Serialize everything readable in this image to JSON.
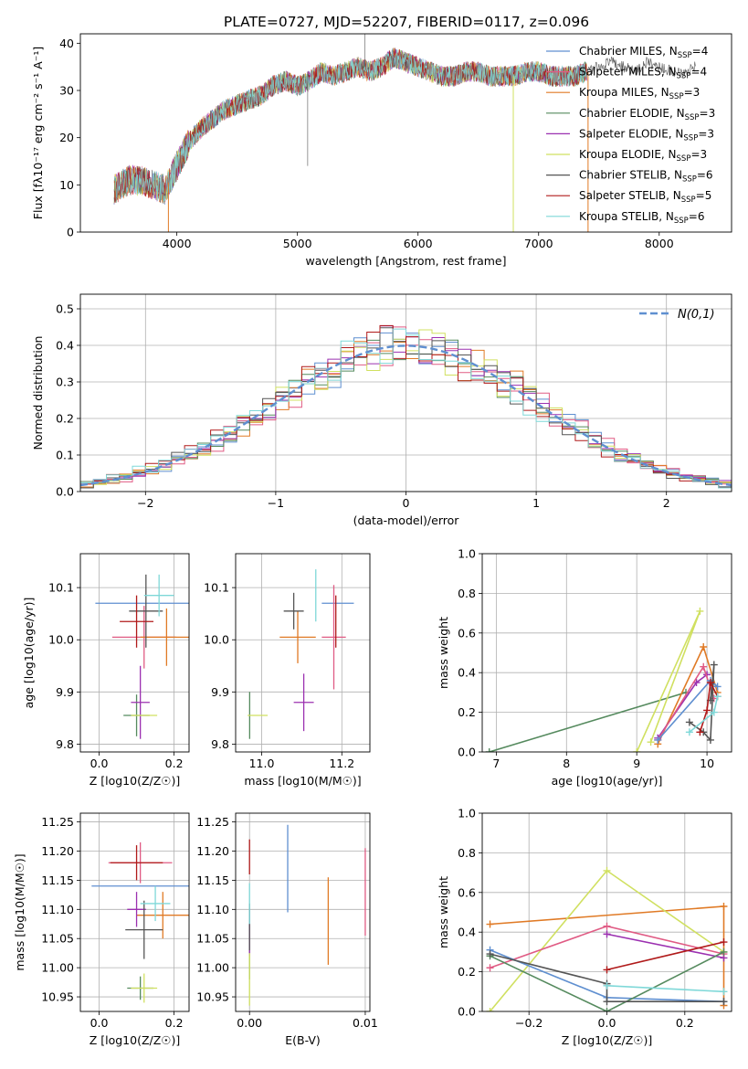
{
  "title": "PLATE=0727, MJD=52207, FIBERID=0117, z=0.096",
  "legend_spectra": [
    {
      "label": "Chabrier MILES, N",
      "sub": "SSP",
      "tail": "=4",
      "color": "#5f8fd0"
    },
    {
      "label": "Salpeter MILES, N",
      "sub": "SSP",
      "tail": "=4",
      "color": "#e05b84"
    },
    {
      "label": "Kroupa MILES, N",
      "sub": "SSP",
      "tail": "=3",
      "color": "#e07a25"
    },
    {
      "label": "Chabrier ELODIE, N",
      "sub": "SSP",
      "tail": "=3",
      "color": "#558a5e"
    },
    {
      "label": "Salpeter ELODIE, N",
      "sub": "SSP",
      "tail": "=3",
      "color": "#9b30b0"
    },
    {
      "label": "Kroupa ELODIE, N",
      "sub": "SSP",
      "tail": "=3",
      "color": "#d0e060"
    },
    {
      "label": "Chabrier STELIB, N",
      "sub": "SSP",
      "tail": "=6",
      "color": "#555555"
    },
    {
      "label": "Salpeter STELIB, N",
      "sub": "SSP",
      "tail": "=5",
      "color": "#b01a1a"
    },
    {
      "label": "Kroupa STELIB, N",
      "sub": "SSP",
      "tail": "=6",
      "color": "#7fd8d8"
    }
  ],
  "chart_data": [
    {
      "type": "line",
      "id": "spectrum",
      "title": "PLATE=0727, MJD=52207, FIBERID=0117, z=0.096",
      "xlabel": "wavelength [Angstrom, rest frame]",
      "ylabel": "Flux [fλ10⁻¹⁷ erg cm⁻² s⁻¹ A⁻¹]",
      "xlim": [
        3200,
        8600
      ],
      "ylim": [
        0,
        42
      ],
      "xticks": [
        4000,
        5000,
        6000,
        7000,
        8000
      ],
      "yticks": [
        0,
        10,
        20,
        30,
        40
      ],
      "grid": false,
      "legend": "right",
      "continuum_x": [
        3480,
        3600,
        3700,
        3800,
        3900,
        4000,
        4100,
        4200,
        4300,
        4400,
        4500,
        4600,
        4700,
        4800,
        4900,
        5000,
        5100,
        5200,
        5300,
        5400,
        5500,
        5600,
        5700,
        5800,
        5900,
        6000,
        6100,
        6200,
        6300,
        6400,
        6500,
        6600,
        6700,
        6800,
        6900,
        7000,
        7100,
        7200,
        7300,
        7400
      ],
      "continuum_y": [
        9,
        11,
        11,
        10,
        9,
        14,
        19,
        22,
        24,
        26,
        27,
        28,
        29,
        31,
        32,
        31,
        32,
        34,
        33,
        34,
        35,
        34,
        35,
        37,
        36,
        35,
        34,
        33,
        33,
        34,
        34,
        33,
        33,
        33,
        34,
        34,
        33,
        33,
        33,
        34
      ],
      "chabrier_stelib_tail_x": [
        7400,
        7600,
        7800,
        7900,
        8000,
        8100,
        8200,
        8300
      ],
      "chabrier_stelib_tail_y": [
        34,
        36,
        34,
        36,
        35,
        34,
        34,
        35
      ],
      "drops": [
        {
          "x": 3930,
          "color": "#e07a25"
        },
        {
          "x": 6790,
          "color": "#d0e060"
        },
        {
          "x": 7410,
          "color": "#e07a25"
        }
      ]
    },
    {
      "type": "line",
      "id": "residuals",
      "xlabel": "(data-model)/error",
      "ylabel": "Normed distribution",
      "xlim": [
        -2.5,
        2.5
      ],
      "ylim": [
        0,
        0.54
      ],
      "xticks": [
        -2,
        -1,
        0,
        1,
        2
      ],
      "yticks": [
        0.0,
        0.1,
        0.2,
        0.3,
        0.4,
        0.5
      ],
      "grid": true,
      "legend": "top-right",
      "legend_label": "N(0,1)",
      "normal_color": "#5f8fd0"
    },
    {
      "type": "scatter",
      "id": "age-vs-z",
      "xlabel": "Z [log10(Z/Z☉)]",
      "ylabel": "age [log10(age/yr)]",
      "xlim": [
        -0.05,
        0.24
      ],
      "ylim": [
        9.785,
        10.165
      ],
      "xticks": [
        0.0,
        0.2
      ],
      "yticks": [
        9.8,
        9.9,
        10.0,
        10.1
      ],
      "grid": true,
      "points": [
        {
          "x": 0.12,
          "y": 10.07,
          "xerr": 0.13,
          "yerr": 0.0,
          "color": "#5f8fd0"
        },
        {
          "x": 0.12,
          "y": 10.005,
          "xerr": 0.085,
          "yerr": 0.06,
          "color": "#e05b84"
        },
        {
          "x": 0.18,
          "y": 10.005,
          "xerr": 0.07,
          "yerr": 0.055,
          "color": "#e07a25"
        },
        {
          "x": 0.1,
          "y": 9.855,
          "xerr": 0.035,
          "yerr": 0.04,
          "color": "#558a5e"
        },
        {
          "x": 0.11,
          "y": 9.88,
          "xerr": 0.025,
          "yerr": 0.07,
          "color": "#9b30b0"
        },
        {
          "x": 0.12,
          "y": 9.855,
          "xerr": 0.035,
          "yerr": 0.0,
          "color": "#d0e060"
        },
        {
          "x": 0.125,
          "y": 10.055,
          "xerr": 0.045,
          "yerr": 0.07,
          "color": "#555555"
        },
        {
          "x": 0.1,
          "y": 10.035,
          "xerr": 0.045,
          "yerr": 0.05,
          "color": "#b01a1a"
        },
        {
          "x": 0.16,
          "y": 10.085,
          "xerr": 0.04,
          "yerr": 0.04,
          "color": "#7fd8d8"
        }
      ]
    },
    {
      "type": "scatter",
      "id": "age-vs-mass",
      "xlabel": "mass [log10(M/M☉)]",
      "ylabel": "",
      "xlim": [
        10.935,
        11.27
      ],
      "ylim": [
        9.785,
        10.165
      ],
      "xticks": [
        11.0,
        11.2
      ],
      "yticks": [
        9.8,
        9.9,
        10.0,
        10.1
      ],
      "grid": true,
      "points": [
        {
          "x": 11.19,
          "y": 10.07,
          "xerr": 0.04,
          "yerr": 0.0,
          "color": "#5f8fd0"
        },
        {
          "x": 11.18,
          "y": 10.005,
          "xerr": 0.03,
          "yerr": 0.1,
          "color": "#e05b84"
        },
        {
          "x": 11.09,
          "y": 10.005,
          "xerr": 0.045,
          "yerr": 0.05,
          "color": "#e07a25"
        },
        {
          "x": 10.97,
          "y": 9.855,
          "xerr": 0.0,
          "yerr": 0.045,
          "color": "#558a5e"
        },
        {
          "x": 11.105,
          "y": 9.88,
          "xerr": 0.025,
          "yerr": 0.055,
          "color": "#9b30b0"
        },
        {
          "x": 10.99,
          "y": 9.855,
          "xerr": 0.025,
          "yerr": 0.0,
          "color": "#d0e060"
        },
        {
          "x": 11.08,
          "y": 10.055,
          "xerr": 0.025,
          "yerr": 0.035,
          "color": "#555555"
        },
        {
          "x": 11.185,
          "y": 10.035,
          "xerr": 0.0,
          "yerr": 0.05,
          "color": "#b01a1a"
        },
        {
          "x": 11.135,
          "y": 10.085,
          "xerr": 0.0,
          "yerr": 0.05,
          "color": "#7fd8d8"
        }
      ]
    },
    {
      "type": "line",
      "id": "weight-vs-age",
      "xlabel": "age [log10(age/yr)]",
      "ylabel": "mass weight",
      "xlim": [
        6.8,
        10.35
      ],
      "ylim": [
        0,
        1.0
      ],
      "xticks": [
        7,
        8,
        9,
        10
      ],
      "yticks": [
        0.0,
        0.2,
        0.4,
        0.6,
        0.8,
        1.0
      ],
      "grid": true,
      "series": [
        {
          "color": "#558a5e",
          "points": [
            [
              6.9,
              0.0
            ],
            [
              9.7,
              0.3
            ]
          ]
        },
        {
          "color": "#d0e060",
          "points": [
            [
              9.0,
              0.0
            ],
            [
              9.9,
              0.71
            ],
            [
              9.2,
              0.05
            ]
          ]
        },
        {
          "color": "#e07a25",
          "points": [
            [
              9.3,
              0.04
            ],
            [
              9.95,
              0.53
            ],
            [
              10.15,
              0.3
            ]
          ]
        },
        {
          "color": "#9b30b0",
          "points": [
            [
              9.3,
              0.07
            ],
            [
              9.85,
              0.35
            ],
            [
              10.0,
              0.39
            ]
          ]
        },
        {
          "color": "#e05b84",
          "points": [
            [
              9.3,
              0.06
            ],
            [
              9.95,
              0.43
            ],
            [
              10.1,
              0.27
            ]
          ]
        },
        {
          "color": "#5f8fd0",
          "points": [
            [
              9.3,
              0.06
            ],
            [
              10.05,
              0.36
            ],
            [
              10.15,
              0.33
            ]
          ]
        },
        {
          "color": "#555555",
          "points": [
            [
              9.75,
              0.15
            ],
            [
              9.95,
              0.1
            ],
            [
              10.05,
              0.06
            ],
            [
              10.1,
              0.44
            ],
            [
              10.05,
              0.26
            ]
          ]
        },
        {
          "color": "#b01a1a",
          "points": [
            [
              9.9,
              0.1
            ],
            [
              10.0,
              0.21
            ],
            [
              10.05,
              0.35
            ],
            [
              10.15,
              0.28
            ]
          ]
        },
        {
          "color": "#7fd8d8",
          "points": [
            [
              9.75,
              0.1
            ],
            [
              10.1,
              0.2
            ],
            [
              10.15,
              0.28
            ]
          ]
        }
      ]
    },
    {
      "type": "scatter",
      "id": "mass-vs-z",
      "xlabel": "Z [log10(Z/Z☉)]",
      "ylabel": "mass [log10(M/M☉)]",
      "xlim": [
        -0.05,
        0.24
      ],
      "ylim": [
        10.925,
        11.265
      ],
      "xticks": [
        0.0,
        0.2
      ],
      "yticks": [
        10.95,
        11.0,
        11.05,
        11.1,
        11.15,
        11.2,
        11.25
      ],
      "grid": true,
      "points": [
        {
          "x": 0.12,
          "y": 11.14,
          "xerr": 0.14,
          "yerr": 0.0,
          "color": "#5f8fd0"
        },
        {
          "x": 0.11,
          "y": 11.18,
          "xerr": 0.085,
          "yerr": 0.035,
          "color": "#e05b84"
        },
        {
          "x": 0.17,
          "y": 11.09,
          "xerr": 0.07,
          "yerr": 0.04,
          "color": "#e07a25"
        },
        {
          "x": 0.11,
          "y": 10.965,
          "xerr": 0.035,
          "yerr": 0.02,
          "color": "#558a5e"
        },
        {
          "x": 0.1,
          "y": 11.1,
          "xerr": 0.025,
          "yerr": 0.03,
          "color": "#9b30b0"
        },
        {
          "x": 0.12,
          "y": 10.965,
          "xerr": 0.035,
          "yerr": 0.025,
          "color": "#d0e060"
        },
        {
          "x": 0.12,
          "y": 11.065,
          "xerr": 0.05,
          "yerr": 0.05,
          "color": "#555555"
        },
        {
          "x": 0.1,
          "y": 11.18,
          "xerr": 0.07,
          "yerr": 0.03,
          "color": "#b01a1a"
        },
        {
          "x": 0.15,
          "y": 11.11,
          "xerr": 0.04,
          "yerr": 0.03,
          "color": "#7fd8d8"
        }
      ]
    },
    {
      "type": "scatter",
      "id": "mass-vs-ebv",
      "xlabel": "E(B-V)",
      "ylabel": "",
      "xlim": [
        -0.0012,
        0.0104
      ],
      "ylim": [
        10.925,
        11.265
      ],
      "xticks": [
        0.0,
        0.01
      ],
      "xtick_labels": [
        "0.00",
        "0.01"
      ],
      "yticks": [
        10.95,
        11.0,
        11.05,
        11.1,
        11.15,
        11.2,
        11.25
      ],
      "grid": true,
      "points": [
        {
          "x": 0.0033,
          "y": 11.17,
          "xerr": 0.0,
          "yerr": 0.075,
          "color": "#5f8fd0"
        },
        {
          "x": 0.01,
          "y": 11.13,
          "xerr": 0.0,
          "yerr": 0.075,
          "color": "#e05b84"
        },
        {
          "x": 0.0068,
          "y": 11.08,
          "xerr": 0.0,
          "yerr": 0.075,
          "color": "#e07a25"
        },
        {
          "x": 0.0,
          "y": 11.04,
          "xerr": 0.0,
          "yerr": 0.06,
          "color": "#558a5e"
        },
        {
          "x": 0.0,
          "y": 11.06,
          "xerr": 0.0,
          "yerr": 0.04,
          "color": "#9b30b0"
        },
        {
          "x": 0.0,
          "y": 10.98,
          "xerr": 0.0,
          "yerr": 0.045,
          "color": "#d0e060"
        },
        {
          "x": 0.0,
          "y": 11.07,
          "xerr": 0.0,
          "yerr": 0.04,
          "color": "#555555"
        },
        {
          "x": 0.0,
          "y": 11.19,
          "xerr": 0.0,
          "yerr": 0.03,
          "color": "#b01a1a"
        },
        {
          "x": 0.0,
          "y": 11.11,
          "xerr": 0.0,
          "yerr": 0.035,
          "color": "#7fd8d8"
        }
      ]
    },
    {
      "type": "line",
      "id": "weight-vs-z",
      "xlabel": "Z [log10(Z/Z☉)]",
      "ylabel": "mass weight",
      "xlim": [
        -0.32,
        0.32
      ],
      "ylim": [
        0,
        1.0
      ],
      "xticks": [
        -0.2,
        0.0,
        0.2
      ],
      "yticks": [
        0.0,
        0.2,
        0.4,
        0.6,
        0.8,
        1.0
      ],
      "grid": true,
      "series": [
        {
          "color": "#e07a25",
          "points": [
            [
              -0.3,
              0.44
            ],
            [
              0.3,
              0.53
            ],
            [
              0.3,
              0.03
            ]
          ]
        },
        {
          "color": "#d0e060",
          "points": [
            [
              -0.3,
              0.0
            ],
            [
              0.0,
              0.71
            ],
            [
              0.3,
              0.3
            ]
          ]
        },
        {
          "color": "#e05b84",
          "points": [
            [
              -0.3,
              0.22
            ],
            [
              0.0,
              0.43
            ],
            [
              0.3,
              0.29
            ]
          ]
        },
        {
          "color": "#9b30b0",
          "points": [
            [
              0.0,
              0.39
            ],
            [
              0.3,
              0.27
            ]
          ]
        },
        {
          "color": "#5f8fd0",
          "points": [
            [
              -0.3,
              0.31
            ],
            [
              0.0,
              0.07
            ],
            [
              0.3,
              0.05
            ]
          ]
        },
        {
          "color": "#558a5e",
          "points": [
            [
              -0.3,
              0.28
            ],
            [
              0.0,
              0.0
            ],
            [
              0.3,
              0.3
            ]
          ]
        },
        {
          "color": "#555555",
          "points": [
            [
              -0.3,
              0.29
            ],
            [
              0.0,
              0.14
            ],
            [
              0.0,
              0.05
            ],
            [
              0.3,
              0.05
            ]
          ]
        },
        {
          "color": "#b01a1a",
          "points": [
            [
              0.0,
              0.21
            ],
            [
              0.3,
              0.35
            ]
          ]
        },
        {
          "color": "#7fd8d8",
          "points": [
            [
              0.0,
              0.13
            ],
            [
              0.3,
              0.1
            ]
          ]
        }
      ]
    }
  ]
}
